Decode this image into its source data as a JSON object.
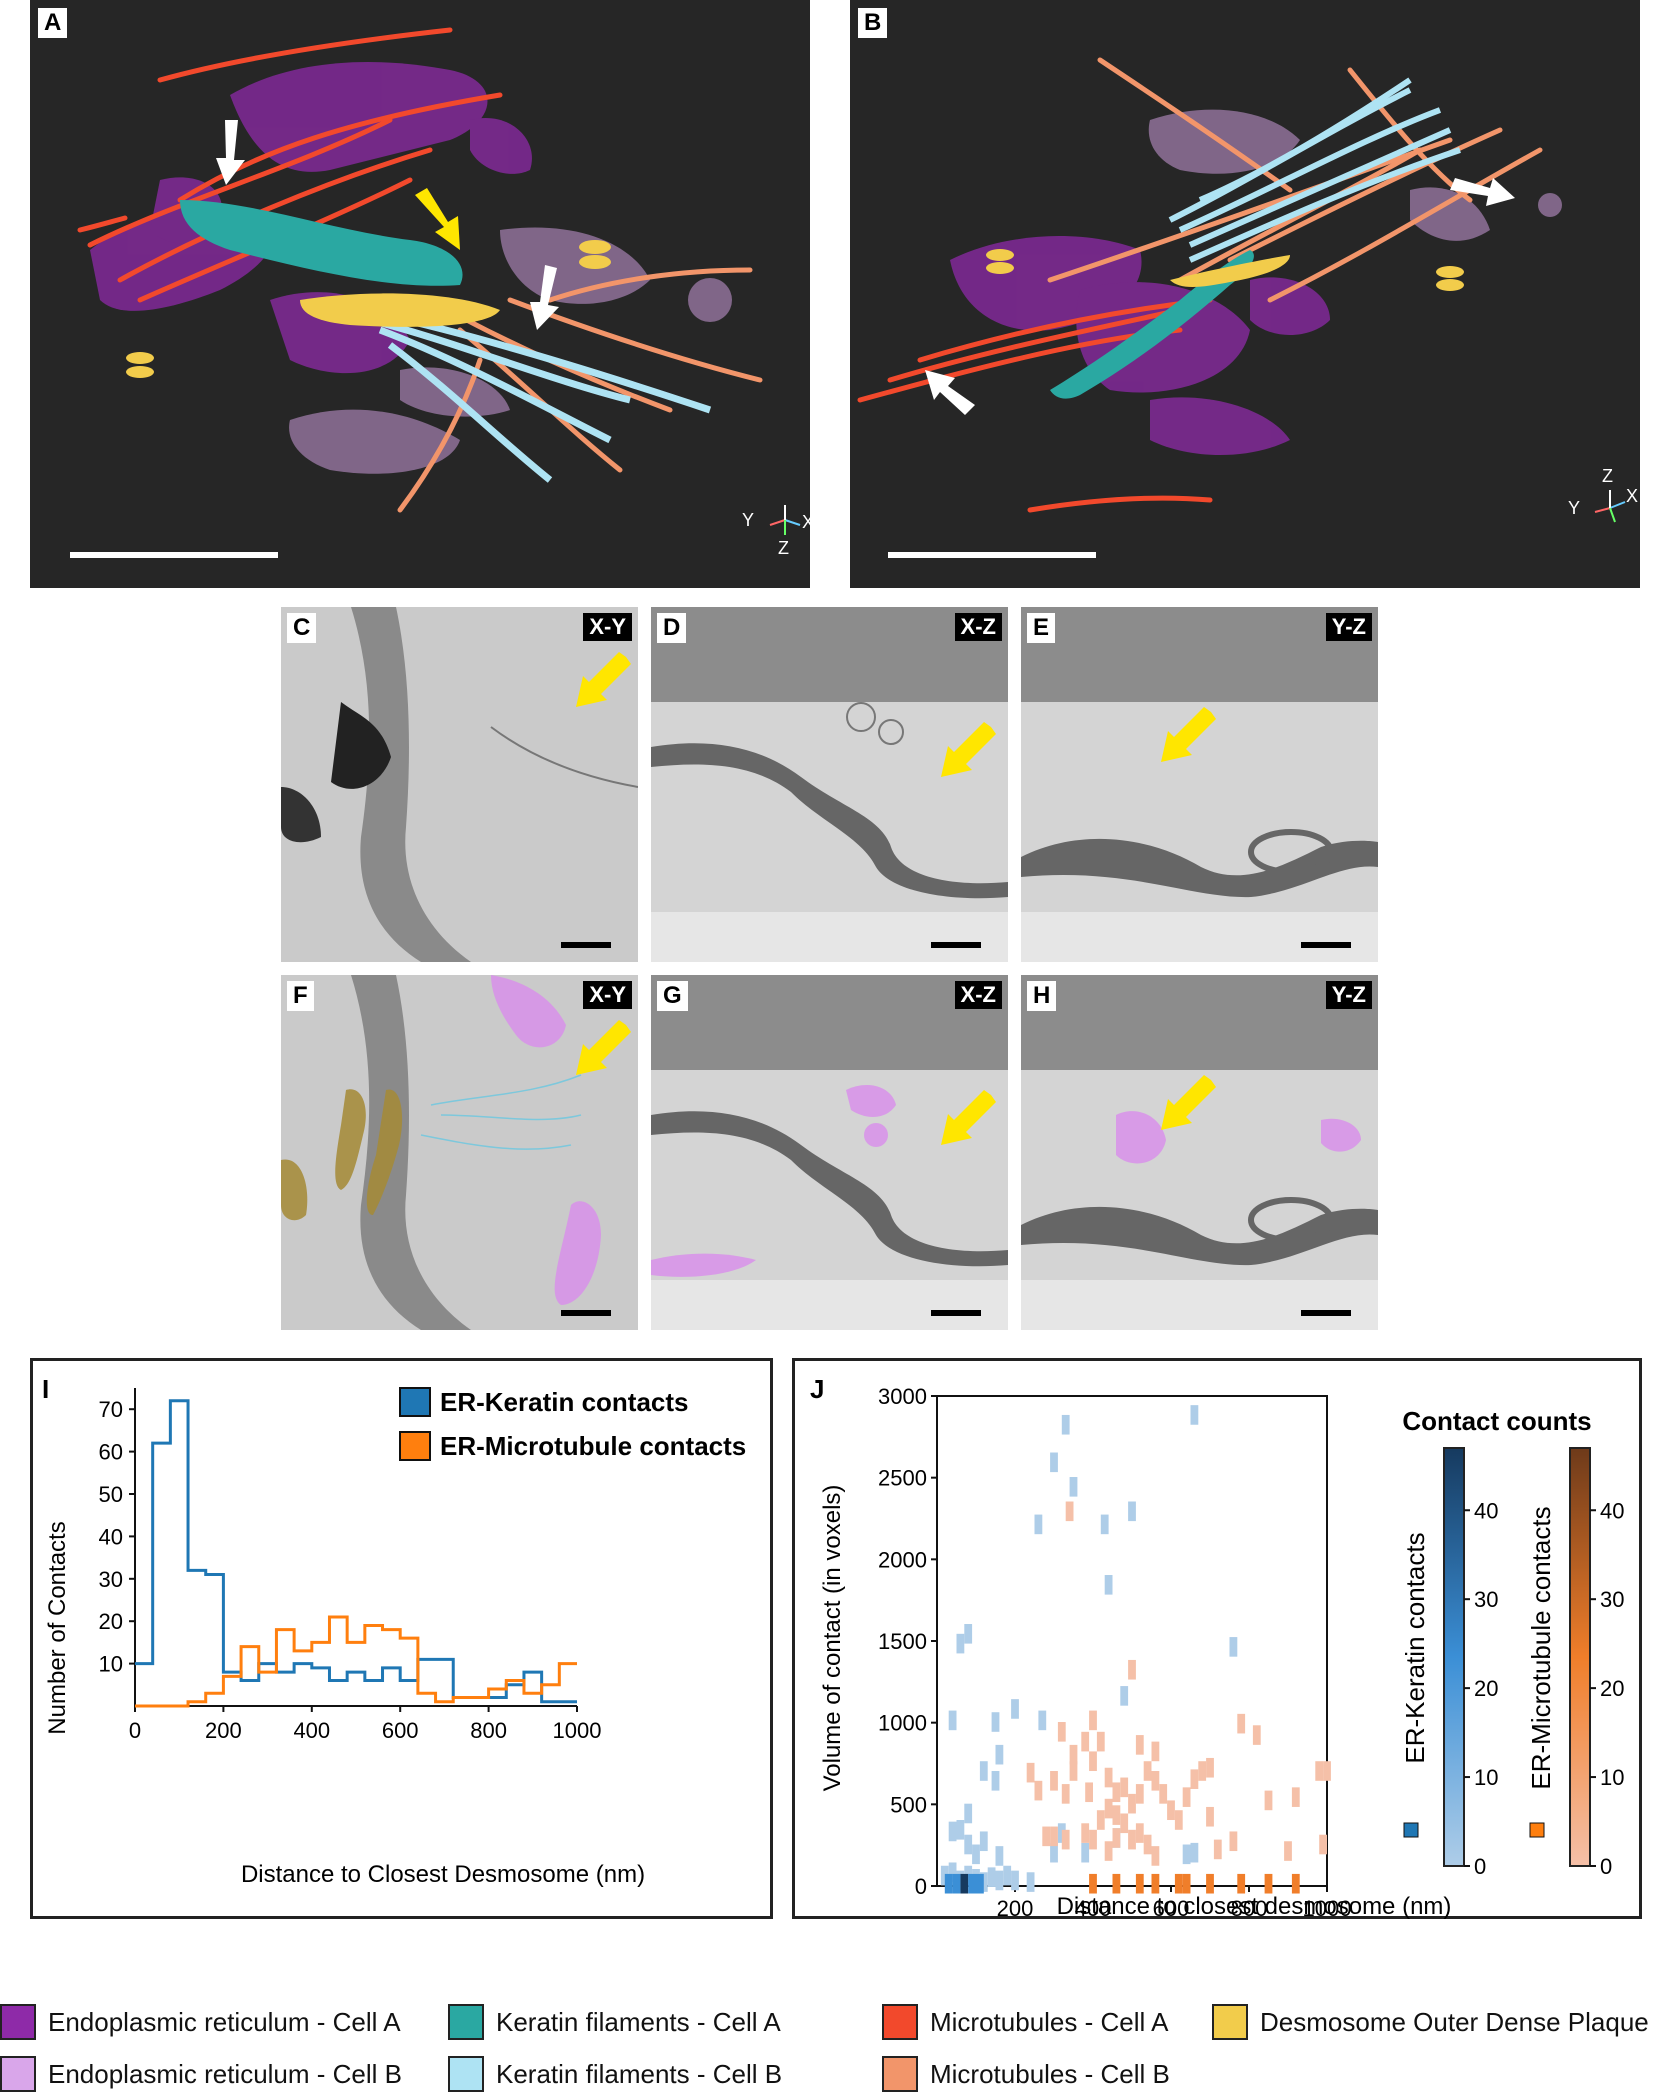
{
  "panels": {
    "A": {
      "label": "A",
      "axes": {
        "y": "Y",
        "x": "X",
        "z": "Z"
      }
    },
    "B": {
      "label": "B",
      "axes": {
        "y": "Y",
        "x": "X",
        "z": "Z"
      }
    },
    "C": {
      "label": "C",
      "plane": "X-Y"
    },
    "D": {
      "label": "D",
      "plane": "X-Z"
    },
    "E": {
      "label": "E",
      "plane": "Y-Z"
    },
    "F": {
      "label": "F",
      "plane": "X-Y"
    },
    "G": {
      "label": "G",
      "plane": "X-Z"
    },
    "H": {
      "label": "H",
      "plane": "Y-Z"
    }
  },
  "colors": {
    "er_a": "#8e2aa8",
    "er_b": "#d9a6ea",
    "keratin_a": "#2aa8a2",
    "keratin_b": "#aee3f3",
    "mt_a": "#f2492c",
    "mt_b": "#f2956a",
    "desmosome": "#f2cc4b",
    "er_keratin": "#1f77b4",
    "er_mt": "#ff7f0e"
  },
  "chart_data": [
    {
      "type": "line",
      "panel": "I",
      "label": "I",
      "xlabel": "Distance to Closest Desmosome (nm)",
      "ylabel": "Number of Contacts",
      "xlim": [
        0,
        1000
      ],
      "ylim": [
        0,
        75
      ],
      "xticks": [
        "0",
        "200",
        "400",
        "600",
        "800",
        "1000"
      ],
      "yticks": [
        "10",
        "20",
        "30",
        "40",
        "50",
        "60",
        "70"
      ],
      "legend_position": "top-right",
      "bin_edges": [
        0,
        40,
        80,
        120,
        160,
        200,
        240,
        280,
        320,
        360,
        400,
        440,
        480,
        520,
        560,
        600,
        640,
        680,
        720,
        760,
        800,
        840,
        880,
        920,
        960,
        1000
      ],
      "series": [
        {
          "name": "ER-Keratin contacts",
          "color": "#1f77b4",
          "values": [
            10,
            62,
            72,
            32,
            31,
            8,
            6,
            10,
            8,
            10,
            9,
            6,
            8,
            6,
            9,
            6,
            11,
            11,
            2,
            2,
            2,
            5,
            8,
            1,
            1
          ]
        },
        {
          "name": "ER-Microtubule contacts",
          "color": "#ff7f0e",
          "values": [
            0,
            0,
            0,
            1,
            3,
            7,
            14,
            8,
            18,
            13,
            15,
            21,
            15,
            19,
            18,
            16,
            3,
            1,
            2,
            2,
            4,
            6,
            3,
            5,
            10
          ]
        }
      ]
    },
    {
      "type": "heatmap",
      "panel": "J",
      "label": "J",
      "xlabel": "Distance to closest desmosome (nm)",
      "ylabel": "Volume of contact (in voxels)",
      "xlim": [
        0,
        1000
      ],
      "ylim": [
        0,
        3000
      ],
      "xticks": [
        "200",
        "400",
        "600",
        "800",
        "1000"
      ],
      "yticks": [
        "0",
        "500",
        "1000",
        "1500",
        "2000",
        "2500",
        "3000"
      ],
      "colorbar_title": "Contact counts",
      "colorbar_ticks": [
        "0",
        "10",
        "20",
        "30",
        "40"
      ],
      "colorbar_range": [
        0,
        47
      ],
      "series": [
        {
          "name": "ER-Keratin contacts",
          "color": "#1f77b4",
          "points": [
            [
              60,
              1480
            ],
            [
              80,
              1540
            ],
            [
              40,
              1010
            ],
            [
              150,
              1000
            ],
            [
              200,
              1080
            ],
            [
              260,
              2210
            ],
            [
              300,
              2590
            ],
            [
              330,
              2820
            ],
            [
              350,
              2440
            ],
            [
              430,
              2210
            ],
            [
              440,
              1840
            ],
            [
              500,
              2290
            ],
            [
              660,
              2880
            ],
            [
              760,
              1460
            ],
            [
              480,
              1160
            ],
            [
              270,
              1010
            ],
            [
              60,
              340
            ],
            [
              80,
              250
            ],
            [
              100,
              190
            ],
            [
              40,
              330
            ],
            [
              120,
              270
            ],
            [
              160,
              180
            ],
            [
              300,
              200
            ],
            [
              320,
              320
            ],
            [
              380,
              200
            ],
            [
              460,
              290
            ],
            [
              640,
              190
            ],
            [
              660,
              200
            ],
            [
              20,
              60
            ],
            [
              40,
              80
            ],
            [
              60,
              30
            ],
            [
              80,
              60
            ],
            [
              100,
              40
            ],
            [
              120,
              20
            ],
            [
              140,
              50
            ],
            [
              160,
              30
            ],
            [
              180,
              60
            ],
            [
              200,
              30
            ],
            [
              240,
              20
            ],
            [
              80,
              440
            ],
            [
              120,
              700
            ],
            [
              160,
              800
            ],
            [
              150,
              640
            ]
          ],
          "hot": [
            [
              30,
              10,
              12
            ],
            [
              70,
              10,
              40
            ],
            [
              90,
              10,
              22
            ],
            [
              110,
              10,
              15
            ],
            [
              50,
              10,
              8
            ]
          ]
        },
        {
          "name": "ER-Microtubule contacts",
          "color": "#ff7f0e",
          "points": [
            [
              340,
              2290
            ],
            [
              320,
              940
            ],
            [
              350,
              800
            ],
            [
              380,
              880
            ],
            [
              400,
              760
            ],
            [
              420,
              880
            ],
            [
              350,
              700
            ],
            [
              300,
              640
            ],
            [
              330,
              560
            ],
            [
              390,
              570
            ],
            [
              440,
              470
            ],
            [
              460,
              570
            ],
            [
              480,
              600
            ],
            [
              500,
              500
            ],
            [
              520,
              560
            ],
            [
              540,
              700
            ],
            [
              560,
              640
            ],
            [
              580,
              560
            ],
            [
              600,
              460
            ],
            [
              620,
              400
            ],
            [
              640,
              540
            ],
            [
              660,
              650
            ],
            [
              680,
              700
            ],
            [
              700,
              420
            ],
            [
              720,
              220
            ],
            [
              760,
              270
            ],
            [
              780,
              990
            ],
            [
              820,
              920
            ],
            [
              850,
              520
            ],
            [
              900,
              210
            ],
            [
              920,
              540
            ],
            [
              980,
              700
            ],
            [
              1000,
              700
            ],
            [
              990,
              250
            ],
            [
              260,
              580
            ],
            [
              280,
              300
            ],
            [
              300,
              300
            ],
            [
              330,
              280
            ],
            [
              400,
              280
            ],
            [
              420,
              400
            ],
            [
              460,
              430
            ],
            [
              480,
              380
            ],
            [
              500,
              280
            ],
            [
              520,
              320
            ],
            [
              540,
              250
            ],
            [
              560,
              180
            ],
            [
              440,
              210
            ],
            [
              460,
              290
            ],
            [
              380,
              320
            ],
            [
              520,
              860
            ],
            [
              500,
              1320
            ],
            [
              700,
              720
            ],
            [
              240,
              690
            ],
            [
              400,
              1010
            ],
            [
              440,
              660
            ],
            [
              560,
              820
            ]
          ],
          "hot": [
            [
              560,
              10,
              14
            ],
            [
              620,
              10,
              22
            ],
            [
              640,
              10,
              18
            ],
            [
              700,
              10,
              10
            ],
            [
              400,
              10,
              6
            ],
            [
              460,
              10,
              8
            ],
            [
              520,
              10,
              9
            ],
            [
              780,
              10,
              5
            ],
            [
              850,
              10,
              6
            ],
            [
              920,
              10,
              4
            ]
          ]
        }
      ]
    }
  ],
  "legend": [
    {
      "label": "Endoplasmic reticulum - Cell A",
      "color": "#8e2aa8"
    },
    {
      "label": "Keratin filaments - Cell A",
      "color": "#2aa8a2"
    },
    {
      "label": "Microtubules - Cell A",
      "color": "#f2492c"
    },
    {
      "label": "Desmosome Outer Dense Plaque",
      "color": "#f2cc4b"
    },
    {
      "label": "Endoplasmic reticulum - Cell B",
      "color": "#d9a6ea"
    },
    {
      "label": "Keratin filaments - Cell B",
      "color": "#aee3f3"
    },
    {
      "label": "Microtubules - Cell B",
      "color": "#f2956a"
    }
  ]
}
